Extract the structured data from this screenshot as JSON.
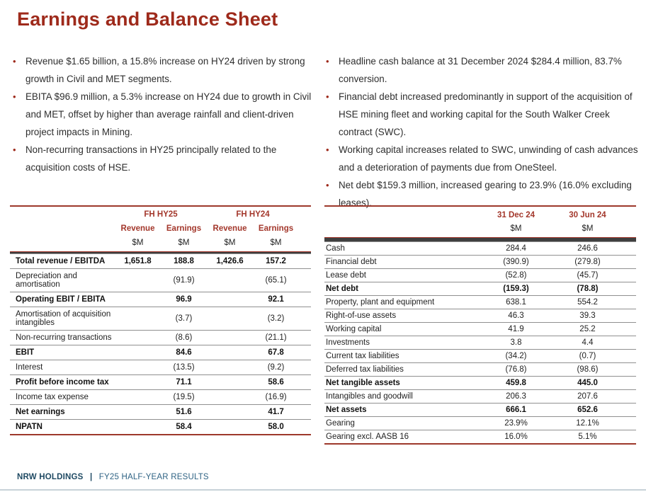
{
  "title": "Earnings and Balance Sheet",
  "colors": {
    "accent_red": "#9E2A1B",
    "table_header_red": "#A3372B",
    "table_border_red": "#9D382B",
    "footer_navy": "#1F4A63",
    "footer_subtitle_navy": "#2F6384",
    "bottom_rule_gray": "#C7D2D8"
  },
  "left_bullets": [
    "Revenue $1.65 billion, a 15.8% increase on HY24 driven by strong growth in Civil and MET segments.",
    "EBITA $96.9 million, a 5.3% increase on HY24 due to growth in Civil and MET, offset by higher than average rainfall and client-driven project impacts in Mining.",
    "Non-recurring transactions in HY25 principally related to the acquisition costs of HSE."
  ],
  "right_bullets": [
    "Headline cash balance at 31 December 2024 $284.4 million, 83.7% conversion.",
    "Financial debt increased predominantly in support of the acquisition of HSE mining fleet and working capital for the South Walker Creek contract (SWC).",
    "Working capital increases related to SWC, unwinding of cash advances and a deterioration of payments due from OneSteel.",
    "Net debt $159.3 million, increased gearing to 23.9% (16.0% excluding leases)."
  ],
  "pnl_table": {
    "group_headers": [
      "FH HY25",
      "FH HY24"
    ],
    "col_headers": [
      "Revenue",
      "Earnings",
      "Revenue",
      "Earnings"
    ],
    "unit_row": [
      "$M",
      "$M",
      "$M",
      "$M"
    ],
    "rows": [
      {
        "label": "Total revenue / EBITDA",
        "bold": true,
        "values": [
          "1,651.8",
          "188.8",
          "1,426.6",
          "157.2"
        ]
      },
      {
        "label": "Depreciation and amortisation",
        "bold": false,
        "values": [
          "",
          "(91.9)",
          "",
          "(65.1)"
        ]
      },
      {
        "label": "Operating EBIT / EBITA",
        "bold": true,
        "values": [
          "",
          "96.9",
          "",
          "92.1"
        ]
      },
      {
        "label": "Amortisation of acquisition intangibles",
        "bold": false,
        "values": [
          "",
          "(3.7)",
          "",
          "(3.2)"
        ]
      },
      {
        "label": "Non-recurring transactions",
        "bold": false,
        "values": [
          "",
          "(8.6)",
          "",
          "(21.1)"
        ]
      },
      {
        "label": "EBIT",
        "bold": true,
        "values": [
          "",
          "84.6",
          "",
          "67.8"
        ]
      },
      {
        "label": "Interest",
        "bold": false,
        "values": [
          "",
          "(13.5)",
          "",
          "(9.2)"
        ]
      },
      {
        "label": "Profit before income tax",
        "bold": true,
        "values": [
          "",
          "71.1",
          "",
          "58.6"
        ]
      },
      {
        "label": "Income tax expense",
        "bold": false,
        "values": [
          "",
          "(19.5)",
          "",
          "(16.9)"
        ]
      },
      {
        "label": "Net earnings",
        "bold": true,
        "values": [
          "",
          "51.6",
          "",
          "41.7"
        ]
      },
      {
        "label": "NPATN",
        "bold": true,
        "values": [
          "",
          "58.4",
          "",
          "58.0"
        ]
      }
    ]
  },
  "balance_table": {
    "col_headers": [
      "31 Dec 24",
      "30 Jun 24"
    ],
    "unit_row": [
      "$M",
      "$M"
    ],
    "rows": [
      {
        "label": "Cash",
        "bold": false,
        "values": [
          "284.4",
          "246.6"
        ]
      },
      {
        "label": "Financial debt",
        "bold": false,
        "values": [
          "(390.9)",
          "(279.8)"
        ]
      },
      {
        "label": "Lease debt",
        "bold": false,
        "values": [
          "(52.8)",
          "(45.7)"
        ]
      },
      {
        "label": "Net debt",
        "bold": true,
        "values": [
          "(159.3)",
          "(78.8)"
        ]
      },
      {
        "label": "Property, plant and equipment",
        "bold": false,
        "values": [
          "638.1",
          "554.2"
        ]
      },
      {
        "label": "Right-of-use assets",
        "bold": false,
        "values": [
          "46.3",
          "39.3"
        ]
      },
      {
        "label": "Working capital",
        "bold": false,
        "values": [
          "41.9",
          "25.2"
        ]
      },
      {
        "label": "Investments",
        "bold": false,
        "values": [
          "3.8",
          "4.4"
        ]
      },
      {
        "label": "Current tax liabilities",
        "bold": false,
        "values": [
          "(34.2)",
          "(0.7)"
        ]
      },
      {
        "label": "Deferred tax liabilities",
        "bold": false,
        "values": [
          "(76.8)",
          "(98.6)"
        ]
      },
      {
        "label": "Net tangible assets",
        "bold": true,
        "values": [
          "459.8",
          "445.0"
        ]
      },
      {
        "label": "Intangibles and goodwill",
        "bold": false,
        "values": [
          "206.3",
          "207.6"
        ]
      },
      {
        "label": "Net assets",
        "bold": true,
        "values": [
          "666.1",
          "652.6"
        ]
      },
      {
        "label": "Gearing",
        "bold": false,
        "values": [
          "23.9%",
          "12.1%"
        ]
      },
      {
        "label": "Gearing excl. AASB 16",
        "bold": false,
        "values": [
          "16.0%",
          "5.1%"
        ]
      }
    ]
  },
  "footer": {
    "brand": "NRW HOLDINGS",
    "divider": "|",
    "subtitle": "FY25 HALF-YEAR RESULTS"
  }
}
